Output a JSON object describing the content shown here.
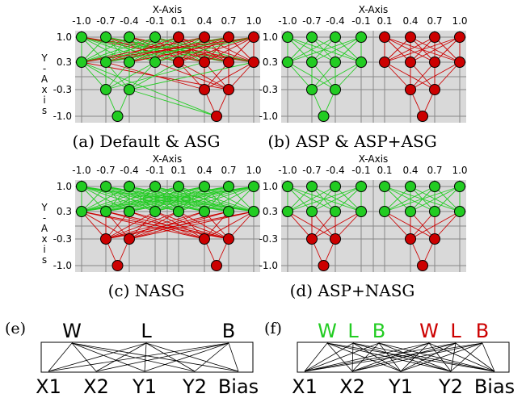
{
  "axis": {
    "x_title": "X-Axis",
    "y_title_letters": [
      "Y",
      "-",
      "A",
      "x",
      "i",
      "s"
    ],
    "x_ticks": [
      "-1.0",
      "-0.7",
      "-0.4",
      "-0.1",
      "0.1",
      "0.4",
      "0.7",
      "1.0"
    ],
    "y_ticks": [
      "1.0",
      "0.3",
      "-0.3",
      "-1.0"
    ]
  },
  "colors": {
    "green": "#22cc22",
    "red": "#cc0000",
    "grid_bg": "#d9d9d9"
  },
  "panels": [
    {
      "id": "a",
      "caption": "(a) Default & ASG"
    },
    {
      "id": "b",
      "caption": "(b) ASP & ASP+ASG"
    },
    {
      "id": "c",
      "caption": "(c) NASG"
    },
    {
      "id": "d",
      "caption": "(d) ASP+NASG"
    }
  ],
  "bottom": {
    "e": {
      "tag": "(e)",
      "top": [
        "W",
        "L",
        "B"
      ],
      "bottom": [
        "X1",
        "X2",
        "Y1",
        "Y2",
        "Bias"
      ]
    },
    "f": {
      "tag": "(f)",
      "top": [
        "W",
        "L",
        "B",
        "W",
        "L",
        "B"
      ],
      "top_colors": [
        "green",
        "green",
        "green",
        "red",
        "red",
        "red"
      ],
      "bottom": [
        "X1",
        "X2",
        "Y1",
        "Y2",
        "Bias"
      ]
    }
  }
}
